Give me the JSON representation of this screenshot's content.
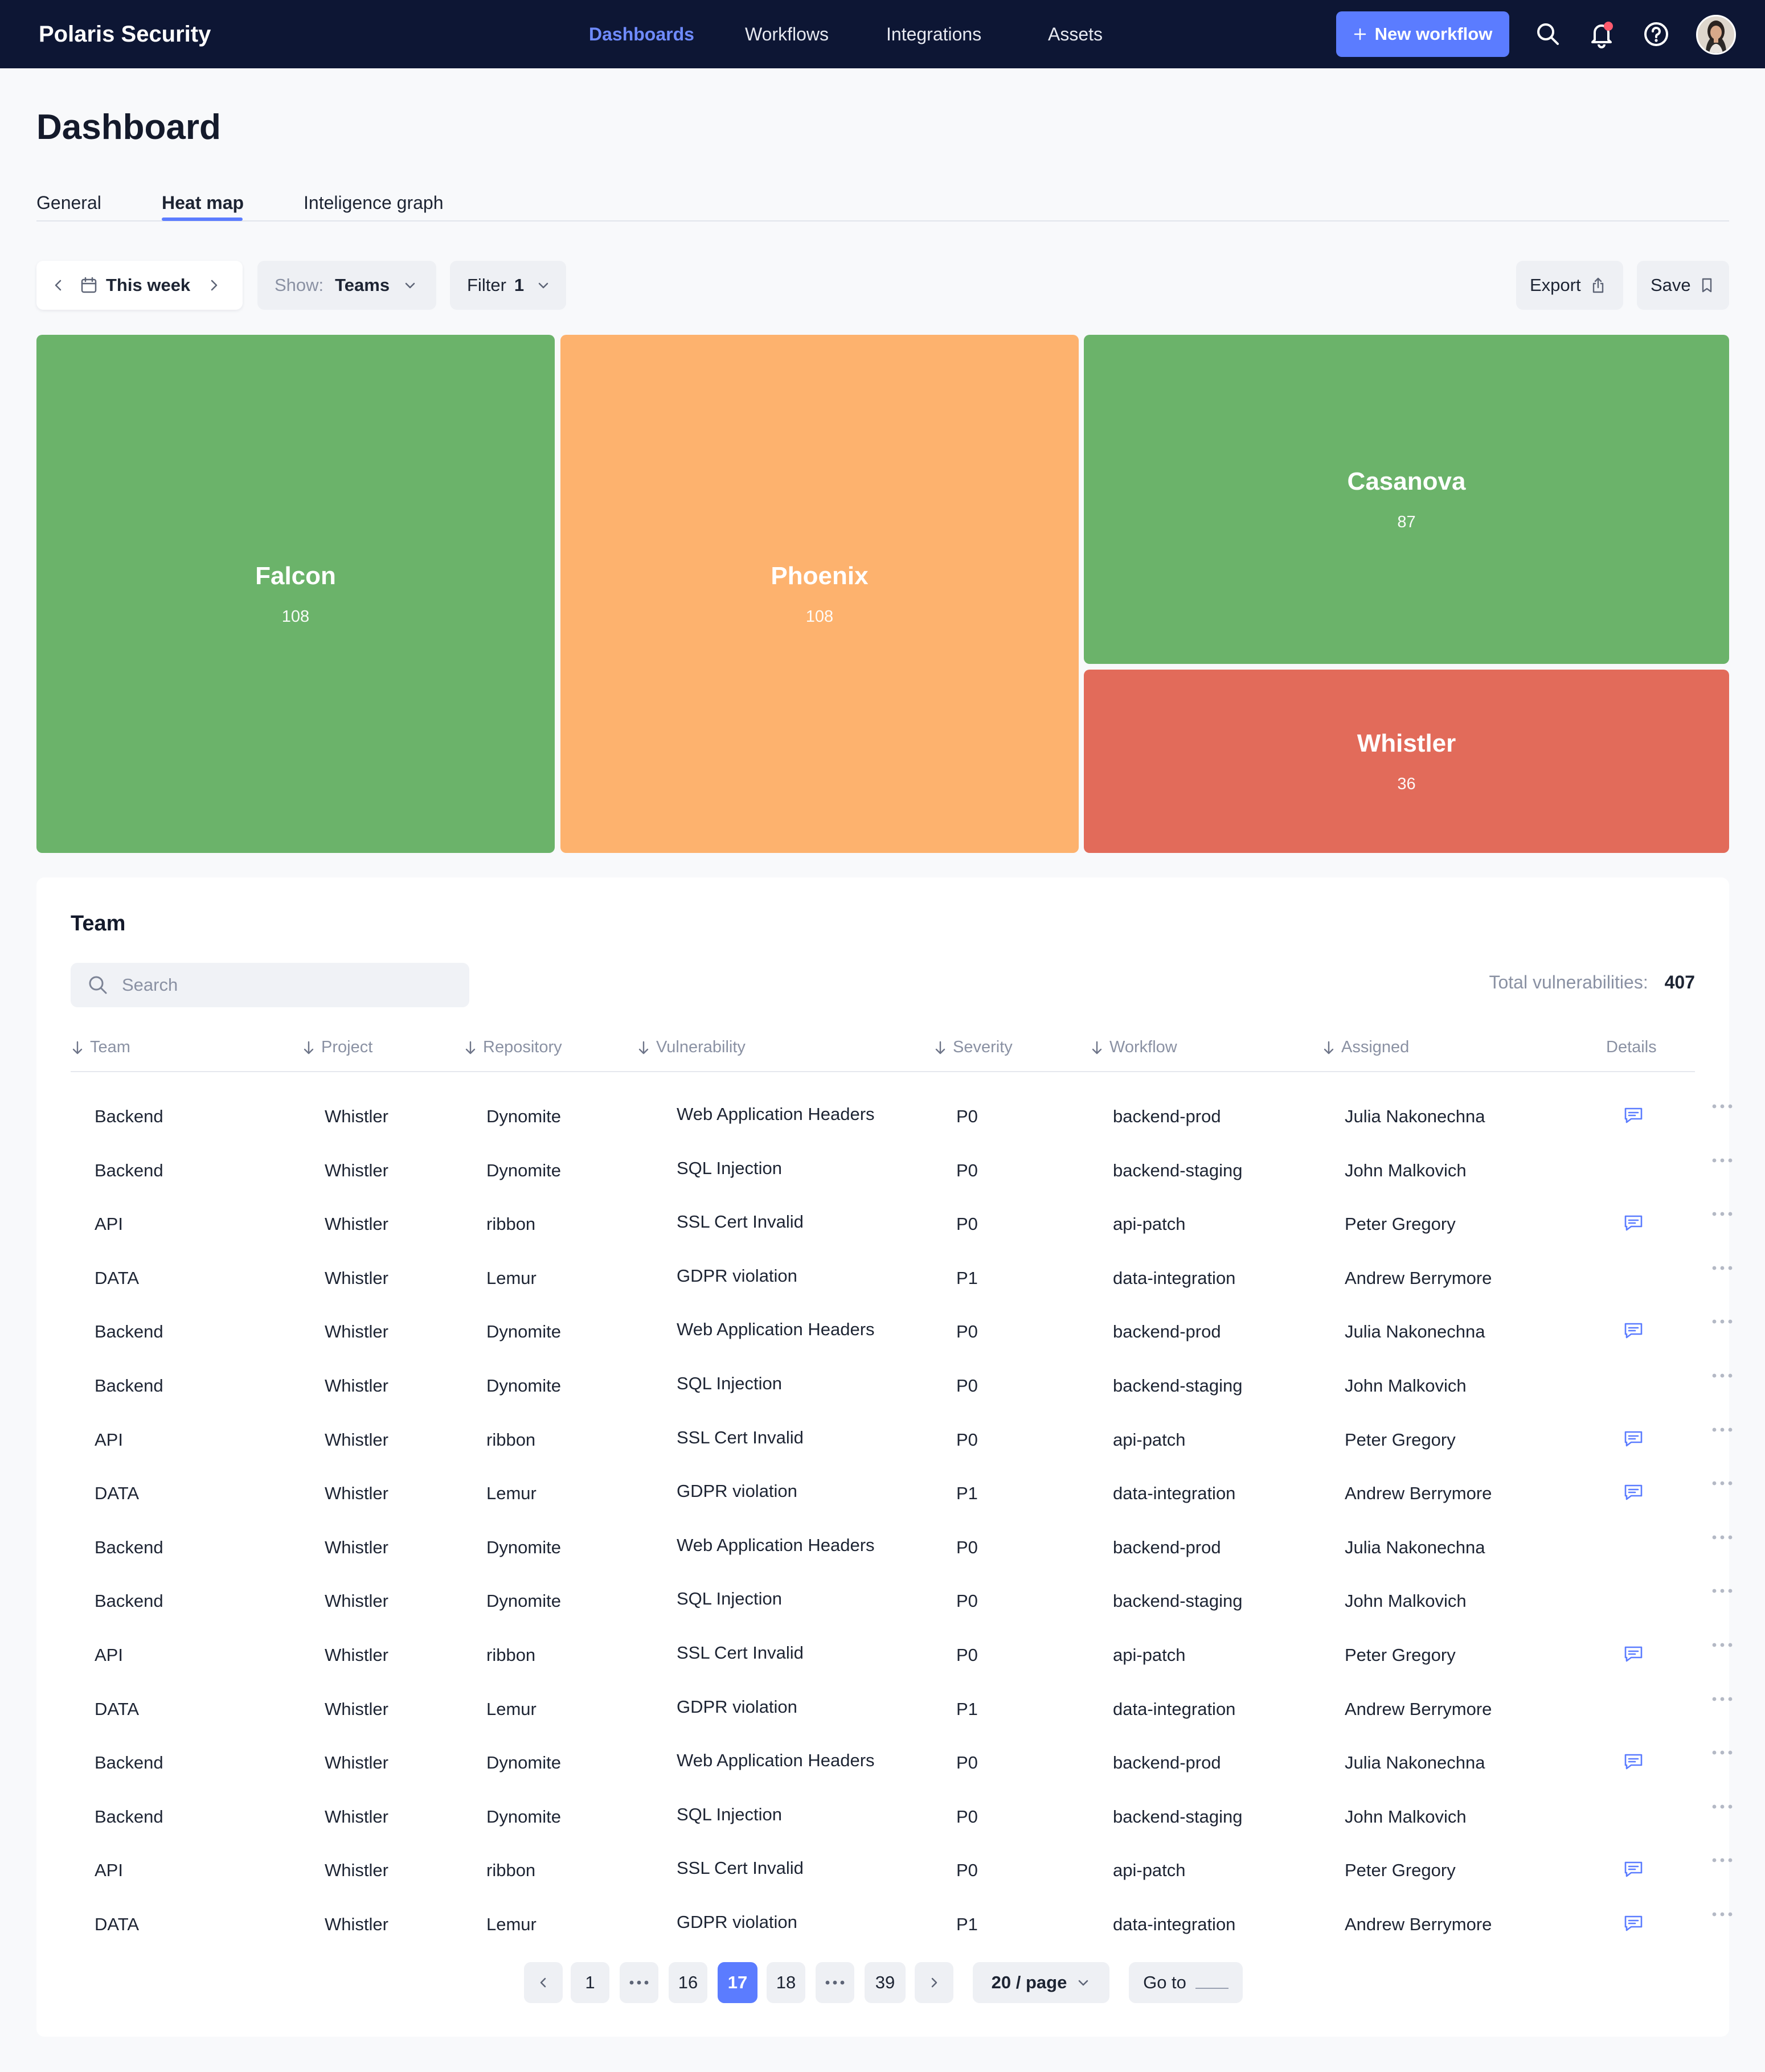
{
  "header": {
    "brand": "Polaris Security",
    "nav": [
      "Dashboards",
      "Workflows",
      "Integrations",
      "Assets"
    ],
    "new_workflow_label": "New workflow",
    "icons": [
      "search-icon",
      "bell-icon",
      "help-icon",
      "avatar"
    ],
    "colors": {
      "bar": "#0d1634",
      "accent": "#5b7cff"
    }
  },
  "page": {
    "title": "Dashboard",
    "tabs": [
      "General",
      "Heat map",
      "Inteligence graph"
    ],
    "active_tab": "Heat map"
  },
  "toolbar": {
    "period": "This week",
    "show_label": "Show:",
    "show_value": "Teams",
    "filter_label": "Filter",
    "filter_count": "1",
    "export_label": "Export",
    "save_label": "Save"
  },
  "heatmap": {
    "tiles": [
      {
        "name": "Falcon",
        "value": "108",
        "color": "#6bb36a"
      },
      {
        "name": "Phoenix",
        "value": "108",
        "color": "#fdb26e"
      },
      {
        "name": "Casanova",
        "value": "87",
        "color": "#6bb36a"
      },
      {
        "name": "Whistler",
        "value": "36",
        "color": "#e26b5a"
      }
    ]
  },
  "team_table": {
    "title": "Team",
    "search_placeholder": "Search",
    "total_label": "Total vulnerabilities:",
    "total_value": "407",
    "columns": [
      "Team",
      "Project",
      "Repository",
      "Vulnerability",
      "Severity",
      "Workflow",
      "Assigned",
      "Details"
    ],
    "rows": [
      {
        "team": "Backend",
        "project": "Whistler",
        "repository": "Dynomite",
        "vulnerability": "Web Application Headers",
        "severity": "P0",
        "workflow": "backend-prod",
        "assigned": "Julia Nakonechna",
        "details": true
      },
      {
        "team": "Backend",
        "project": "Whistler",
        "repository": "Dynomite",
        "vulnerability": "SQL Injection",
        "severity": "P0",
        "workflow": "backend-staging",
        "assigned": "John Malkovich",
        "details": false
      },
      {
        "team": "API",
        "project": "Whistler",
        "repository": "ribbon",
        "vulnerability": "SSL Cert Invalid",
        "severity": "P0",
        "workflow": "api-patch",
        "assigned": "Peter Gregory",
        "details": true
      },
      {
        "team": "DATA",
        "project": "Whistler",
        "repository": "Lemur",
        "vulnerability": "GDPR violation",
        "severity": "P1",
        "workflow": "data-integration",
        "assigned": "Andrew Berrymore",
        "details": false
      },
      {
        "team": "Backend",
        "project": "Whistler",
        "repository": "Dynomite",
        "vulnerability": "Web Application Headers",
        "severity": "P0",
        "workflow": "backend-prod",
        "assigned": "Julia Nakonechna",
        "details": true
      },
      {
        "team": "Backend",
        "project": "Whistler",
        "repository": "Dynomite",
        "vulnerability": "SQL Injection",
        "severity": "P0",
        "workflow": "backend-staging",
        "assigned": "John Malkovich",
        "details": false
      },
      {
        "team": "API",
        "project": "Whistler",
        "repository": "ribbon",
        "vulnerability": "SSL Cert Invalid",
        "severity": "P0",
        "workflow": "api-patch",
        "assigned": "Peter Gregory",
        "details": true
      },
      {
        "team": "DATA",
        "project": "Whistler",
        "repository": "Lemur",
        "vulnerability": "GDPR violation",
        "severity": "P1",
        "workflow": "data-integration",
        "assigned": "Andrew Berrymore",
        "details": true
      },
      {
        "team": "Backend",
        "project": "Whistler",
        "repository": "Dynomite",
        "vulnerability": "Web Application Headers",
        "severity": "P0",
        "workflow": "backend-prod",
        "assigned": "Julia Nakonechna",
        "details": false
      },
      {
        "team": "Backend",
        "project": "Whistler",
        "repository": "Dynomite",
        "vulnerability": "SQL Injection",
        "severity": "P0",
        "workflow": "backend-staging",
        "assigned": "John Malkovich",
        "details": false
      },
      {
        "team": "API",
        "project": "Whistler",
        "repository": "ribbon",
        "vulnerability": "SSL Cert Invalid",
        "severity": "P0",
        "workflow": "api-patch",
        "assigned": "Peter Gregory",
        "details": true
      },
      {
        "team": "DATA",
        "project": "Whistler",
        "repository": "Lemur",
        "vulnerability": "GDPR violation",
        "severity": "P1",
        "workflow": "data-integration",
        "assigned": "Andrew Berrymore",
        "details": false
      },
      {
        "team": "Backend",
        "project": "Whistler",
        "repository": "Dynomite",
        "vulnerability": "Web Application Headers",
        "severity": "P0",
        "workflow": "backend-prod",
        "assigned": "Julia Nakonechna",
        "details": true
      },
      {
        "team": "Backend",
        "project": "Whistler",
        "repository": "Dynomite",
        "vulnerability": "SQL Injection",
        "severity": "P0",
        "workflow": "backend-staging",
        "assigned": "John Malkovich",
        "details": false
      },
      {
        "team": "API",
        "project": "Whistler",
        "repository": "ribbon",
        "vulnerability": "SSL Cert Invalid",
        "severity": "P0",
        "workflow": "api-patch",
        "assigned": "Peter Gregory",
        "details": true
      },
      {
        "team": "DATA",
        "project": "Whistler",
        "repository": "Lemur",
        "vulnerability": "GDPR violation",
        "severity": "P1",
        "workflow": "data-integration",
        "assigned": "Andrew Berrymore",
        "details": true
      }
    ]
  },
  "pagination": {
    "pages": [
      "1",
      "16",
      "17",
      "18",
      "39"
    ],
    "current": "17",
    "per_page": "20 / page",
    "goto_label": "Go to"
  }
}
